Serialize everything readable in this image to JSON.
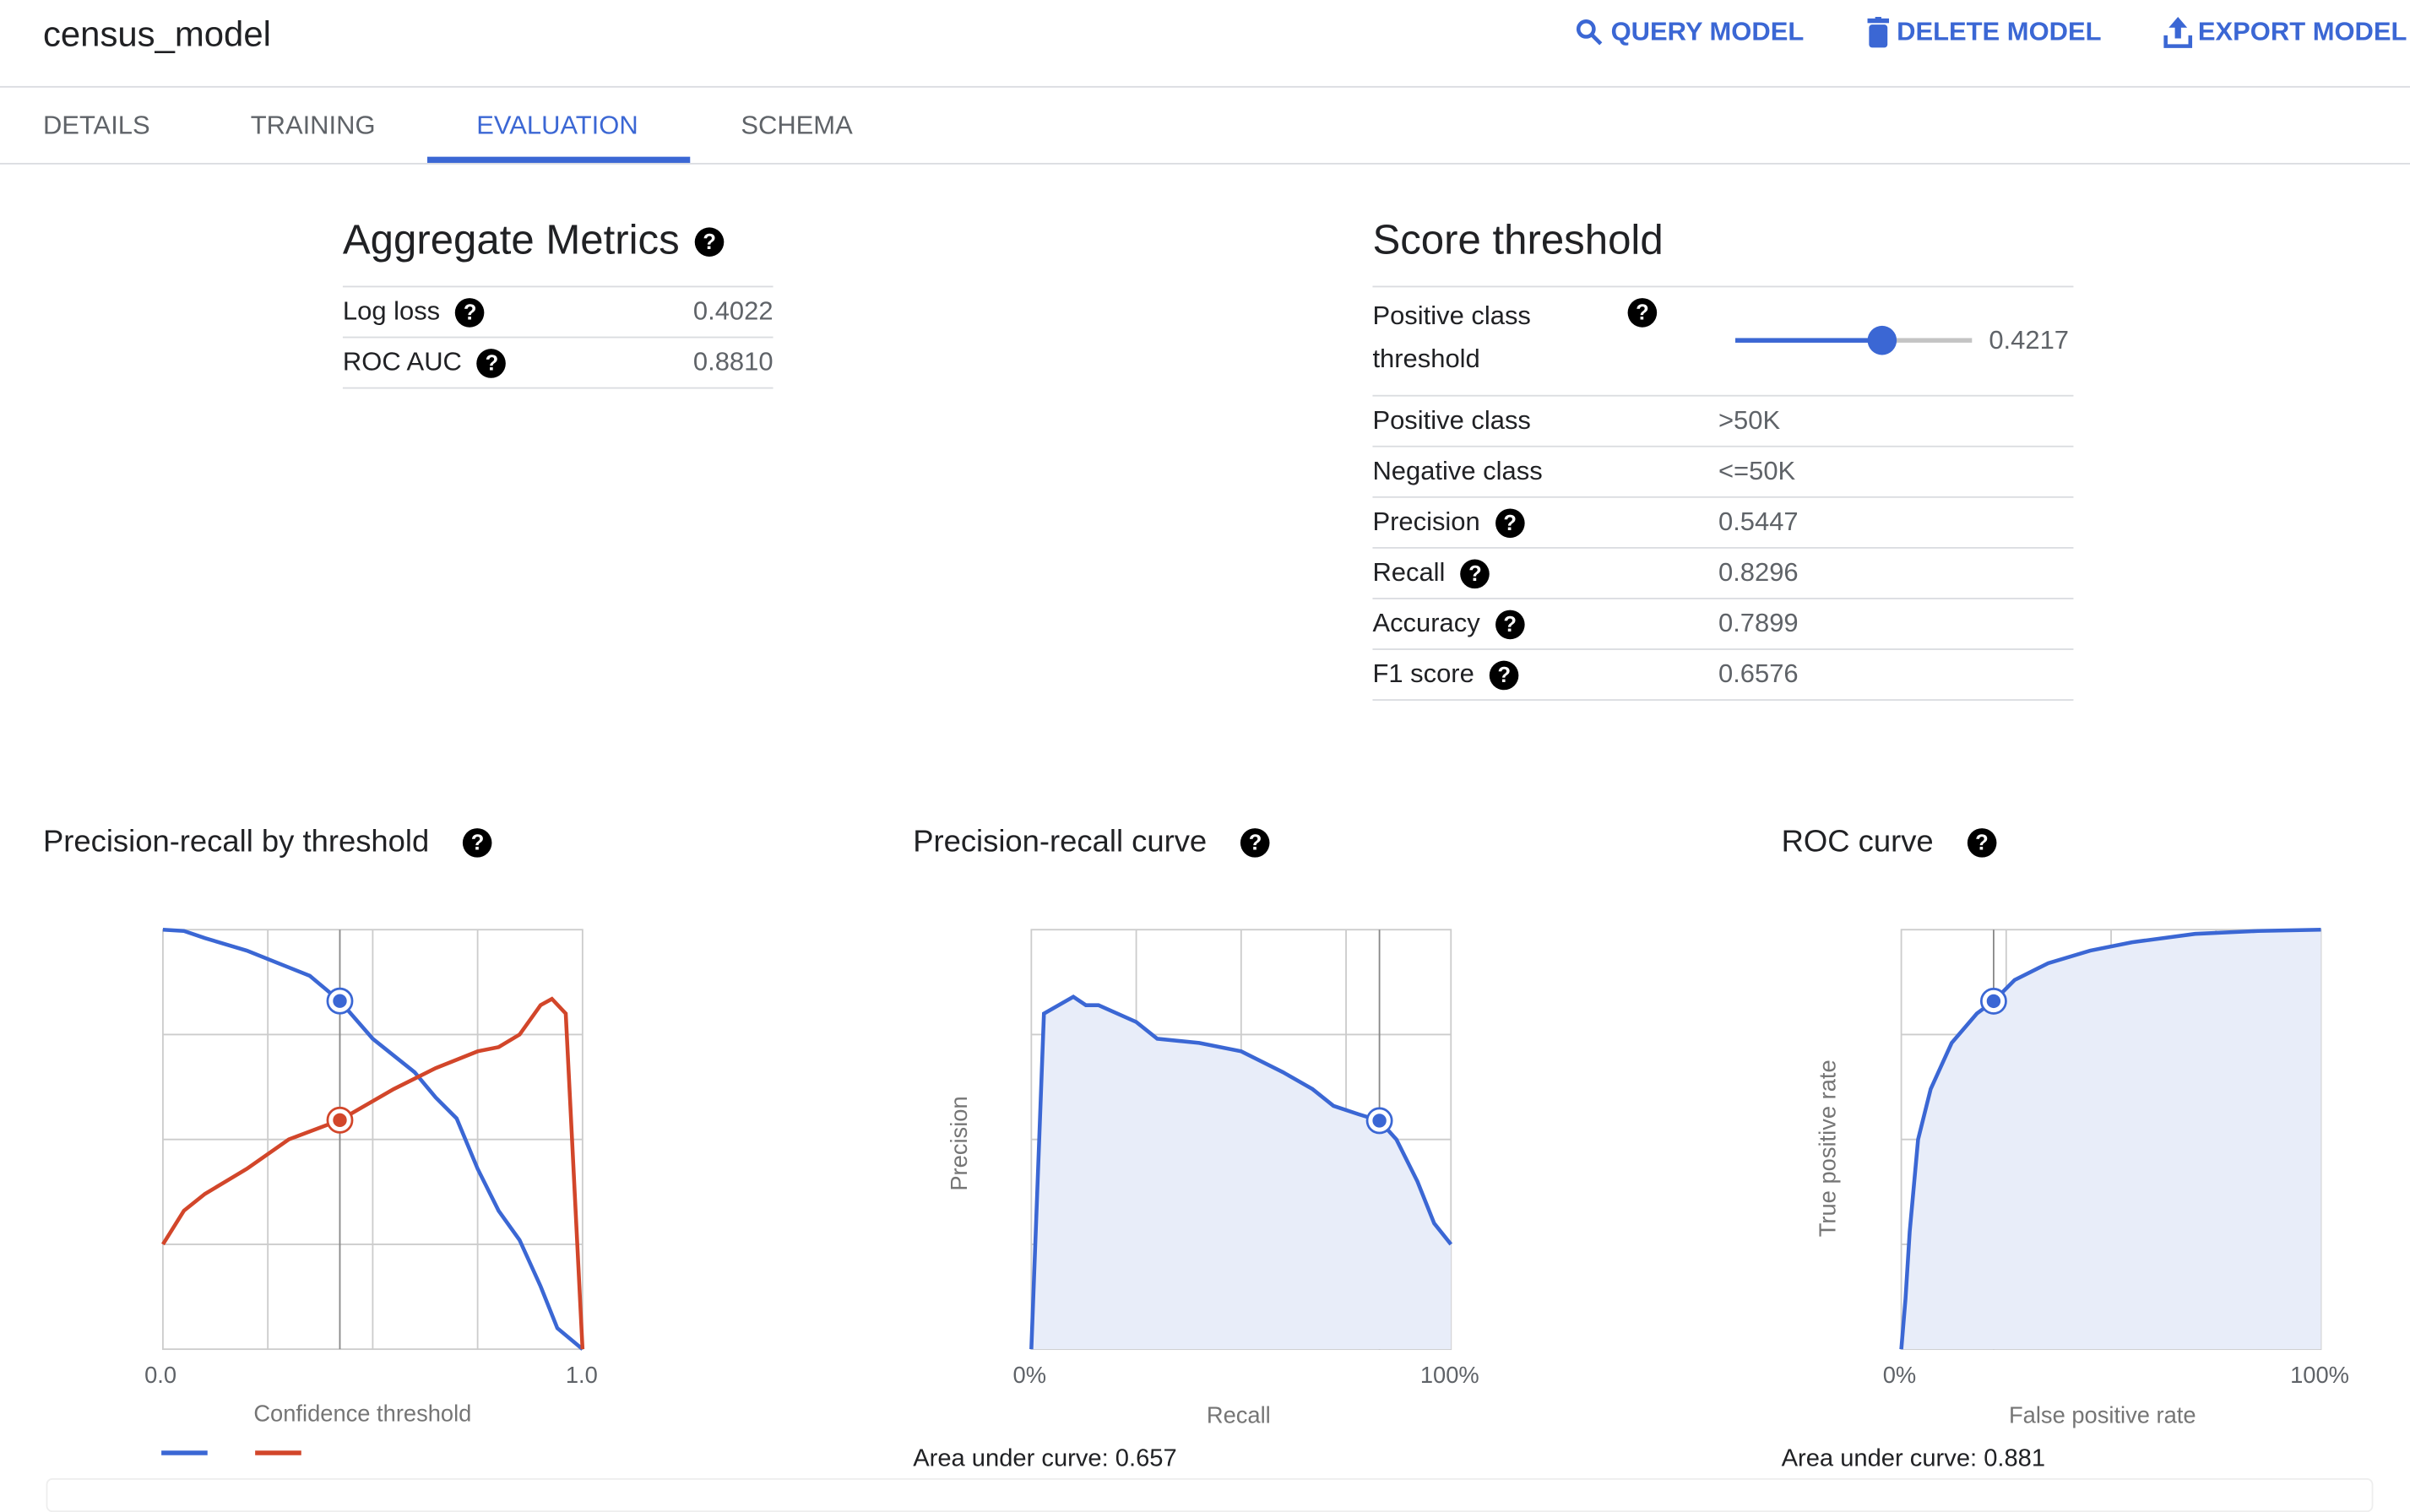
{
  "header": {
    "title": "census_model",
    "actions": [
      {
        "label": "QUERY MODEL",
        "icon": "search-icon"
      },
      {
        "label": "DELETE MODEL",
        "icon": "trash-icon"
      },
      {
        "label": "EXPORT MODEL",
        "icon": "upload-icon"
      }
    ]
  },
  "tabs": [
    {
      "label": "DETAILS"
    },
    {
      "label": "TRAINING"
    },
    {
      "label": "EVALUATION",
      "active": true
    },
    {
      "label": "SCHEMA"
    }
  ],
  "aggregate": {
    "title": "Aggregate Metrics",
    "rows": [
      {
        "label": "Log loss",
        "value": "0.4022"
      },
      {
        "label": "ROC AUC",
        "value": "0.8810"
      }
    ]
  },
  "threshold": {
    "title": "Score threshold",
    "slider_label_1": "Positive class",
    "slider_label_2": "threshold",
    "slider_value": "0.4217",
    "slider_fraction": 0.62,
    "rows": [
      {
        "label": "Positive class",
        "value": ">50K",
        "help": false
      },
      {
        "label": "Negative class",
        "value": "<=50K",
        "help": false
      },
      {
        "label": "Precision",
        "value": "0.5447",
        "help": true
      },
      {
        "label": "Recall",
        "value": "0.8296",
        "help": true
      },
      {
        "label": "Accuracy",
        "value": "0.7899",
        "help": true
      },
      {
        "label": "F1 score",
        "value": "0.6576",
        "help": true
      }
    ]
  },
  "colors": {
    "accent": "#3b67d4",
    "blue": "#3b67d4",
    "red": "#d2462a"
  },
  "chart_data": [
    {
      "type": "line",
      "title": "Precision-recall by threshold",
      "xlabel": "Confidence threshold",
      "ylabel": "",
      "xlim": [
        0,
        1
      ],
      "ylim": [
        0,
        1
      ],
      "xticks": [
        "0.0",
        "1.0"
      ],
      "grid": true,
      "legend": "bottom-left",
      "marker_x": 0.4217,
      "series": [
        {
          "color": "#3b67d4",
          "x": [
            0,
            0.05,
            0.1,
            0.2,
            0.3,
            0.35,
            0.4217,
            0.5,
            0.55,
            0.6,
            0.65,
            0.7,
            0.75,
            0.8,
            0.85,
            0.9,
            0.94,
            1
          ],
          "y": [
            1,
            0.997,
            0.98,
            0.95,
            0.91,
            0.89,
            0.83,
            0.74,
            0.7,
            0.66,
            0.6,
            0.55,
            0.43,
            0.33,
            0.26,
            0.15,
            0.05,
            0
          ]
        },
        {
          "color": "#d2462a",
          "x": [
            0,
            0.05,
            0.1,
            0.2,
            0.3,
            0.4217,
            0.55,
            0.65,
            0.75,
            0.8,
            0.85,
            0.9,
            0.927,
            0.96,
            1
          ],
          "y": [
            0.25,
            0.33,
            0.37,
            0.43,
            0.5,
            0.546,
            0.62,
            0.67,
            0.71,
            0.72,
            0.75,
            0.82,
            0.835,
            0.8,
            0
          ]
        }
      ]
    },
    {
      "type": "area",
      "title": "Precision-recall curve",
      "xlabel": "Recall",
      "ylabel": "Precision",
      "xlim": [
        0,
        1
      ],
      "ylim": [
        0,
        1
      ],
      "xticks": [
        "0%",
        "100%"
      ],
      "grid": true,
      "auc": "Area under curve: 0.657",
      "marker": [
        0.8296,
        0.5447
      ],
      "series": [
        {
          "color": "#3b67d4",
          "x": [
            0,
            0.03,
            0.1,
            0.13,
            0.16,
            0.25,
            0.3,
            0.4,
            0.5,
            0.6,
            0.67,
            0.72,
            0.78,
            0.8296,
            0.87,
            0.92,
            0.96,
            1
          ],
          "y": [
            0,
            0.8,
            0.84,
            0.82,
            0.82,
            0.78,
            0.74,
            0.73,
            0.71,
            0.66,
            0.62,
            0.58,
            0.56,
            0.5447,
            0.5,
            0.4,
            0.3,
            0.25
          ]
        }
      ]
    },
    {
      "type": "area",
      "title": "ROC curve",
      "xlabel": "False positive rate",
      "ylabel": "True positive rate",
      "xlim": [
        0,
        1
      ],
      "ylim": [
        0,
        1
      ],
      "xticks": [
        "0%",
        "100%"
      ],
      "grid": true,
      "auc": "Area under curve: 0.881",
      "marker": [
        0.22,
        0.8296
      ],
      "series": [
        {
          "color": "#3b67d4",
          "x": [
            0,
            0.01,
            0.02,
            0.04,
            0.07,
            0.12,
            0.18,
            0.22,
            0.27,
            0.35,
            0.45,
            0.55,
            0.7,
            0.85,
            1
          ],
          "y": [
            0,
            0.12,
            0.28,
            0.5,
            0.62,
            0.73,
            0.8,
            0.8296,
            0.88,
            0.92,
            0.95,
            0.97,
            0.99,
            0.997,
            1
          ]
        }
      ]
    }
  ]
}
